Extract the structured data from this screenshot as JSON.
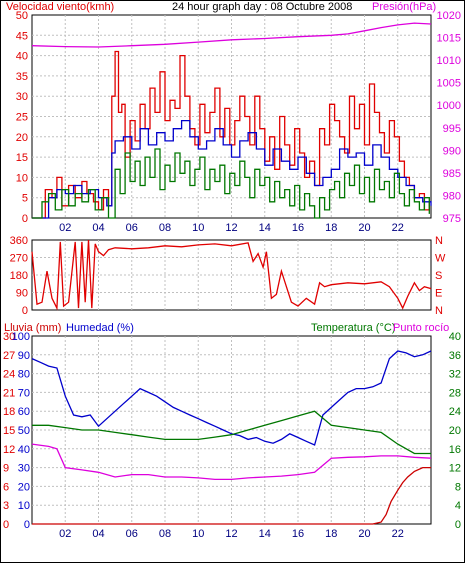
{
  "header": {
    "left_label": "Velocidad viento(kmh)",
    "title": "24 hour graph day : 08 Octubre 2008",
    "right_label": "Presión(hPa)"
  },
  "colors": {
    "red": "#e00000",
    "blue": "#0000cc",
    "green": "#007700",
    "magenta": "#dd00dd",
    "grid": "#c0c0c0"
  },
  "x_ticks": [
    "02",
    "04",
    "06",
    "08",
    "10",
    "12",
    "14",
    "16",
    "18",
    "20",
    "22"
  ],
  "panel3_labels": {
    "rain": "Lluvia (mm)",
    "humidity": "Humedad (%)",
    "temperature": "Temperatura (°C)",
    "dewpoint": "Punto rocío"
  },
  "chart_data": [
    {
      "type": "line",
      "title": "24 hour graph day : 08 Octubre 2008",
      "x_unit": "hour",
      "xlim": [
        0,
        24
      ],
      "y_left": {
        "label": "Velocidad viento(kmh)",
        "lim": [
          0,
          50
        ],
        "ticks": [
          "0",
          "5",
          "10",
          "15",
          "20",
          "25",
          "30",
          "35",
          "40",
          "45",
          "50"
        ]
      },
      "y_right": {
        "label": "Presión(hPa)",
        "lim": [
          975,
          1020
        ],
        "ticks": [
          "975",
          "980",
          "985",
          "990",
          "995",
          "1000",
          "1005",
          "1010",
          "1015",
          "1020"
        ]
      },
      "series": [
        {
          "name": "Velocidad viento(kmh)",
          "axis": "left",
          "color": "#e00000",
          "x": [
            0,
            0.5,
            0.8,
            1.2,
            1.5,
            1.8,
            2.2,
            2.6,
            3,
            3.3,
            3.7,
            4,
            4.3,
            4.6,
            4.8,
            5,
            5.2,
            5.4,
            5.6,
            5.9,
            6.2,
            6.5,
            6.8,
            7.1,
            7.4,
            7.7,
            8,
            8.3,
            8.6,
            8.9,
            9.2,
            9.5,
            9.8,
            10.1,
            10.4,
            10.7,
            11,
            11.3,
            11.6,
            11.9,
            12.2,
            12.5,
            12.8,
            13.1,
            13.4,
            13.7,
            14,
            14.3,
            14.6,
            14.9,
            15.2,
            15.5,
            15.8,
            16.1,
            16.4,
            16.7,
            17,
            17.3,
            17.6,
            17.9,
            18.2,
            18.5,
            18.8,
            19.1,
            19.4,
            19.7,
            20,
            20.3,
            20.6,
            20.9,
            21.2,
            21.5,
            21.8,
            22.1,
            22.4,
            22.7,
            23,
            23.3,
            23.6,
            23.9
          ],
          "values": [
            0,
            0,
            7,
            5,
            10,
            3,
            8,
            5,
            9,
            6,
            4,
            2,
            7,
            3,
            30,
            41,
            26,
            28,
            15,
            24,
            19,
            28,
            22,
            32,
            26,
            36,
            24,
            29,
            27,
            40,
            30,
            22,
            18,
            28,
            21,
            26,
            32,
            20,
            27,
            18,
            24,
            30,
            25,
            18,
            30,
            22,
            14,
            20,
            12,
            25,
            18,
            13,
            22,
            16,
            10,
            14,
            8,
            22,
            18,
            28,
            24,
            20,
            16,
            30,
            22,
            28,
            18,
            33,
            26,
            21,
            16,
            24,
            20,
            14,
            10,
            8,
            5,
            6,
            2,
            4
          ]
        },
        {
          "name": "Promedio viento",
          "axis": "left",
          "color": "#0000cc",
          "x": [
            0,
            1,
            1.5,
            2,
            2.5,
            3,
            3.5,
            4,
            4.5,
            4.8,
            5,
            5.5,
            6,
            6.5,
            7,
            7.5,
            8,
            8.5,
            9,
            9.5,
            10,
            10.5,
            11,
            11.5,
            12,
            12.5,
            13,
            13.5,
            14,
            14.5,
            15,
            15.5,
            16,
            16.5,
            17,
            17.5,
            18,
            18.5,
            19,
            19.5,
            20,
            20.5,
            21,
            21.5,
            22,
            22.5,
            23,
            23.5,
            24
          ],
          "values": [
            0,
            5,
            7,
            6,
            8,
            6,
            7,
            5,
            3,
            16,
            19,
            20,
            17,
            22,
            18,
            21,
            19,
            22,
            24,
            20,
            17,
            19,
            22,
            18,
            15,
            19,
            21,
            17,
            13,
            17,
            14,
            12,
            15,
            11,
            8,
            10,
            12,
            17,
            15,
            16,
            13,
            18,
            15,
            12,
            10,
            8,
            5,
            4,
            3
          ]
        },
        {
          "name": "Viento medio",
          "axis": "left",
          "color": "#007700",
          "x": [
            0,
            0.6,
            1,
            1.4,
            1.8,
            2.2,
            2.6,
            3,
            3.4,
            3.8,
            4.2,
            4.6,
            5,
            5.3,
            5.6,
            5.9,
            6.2,
            6.5,
            6.8,
            7.1,
            7.4,
            7.7,
            8,
            8.3,
            8.6,
            8.9,
            9.2,
            9.5,
            9.8,
            10.1,
            10.4,
            10.7,
            11,
            11.3,
            11.6,
            11.9,
            12.2,
            12.5,
            12.8,
            13.1,
            13.4,
            13.7,
            14,
            14.3,
            14.6,
            14.9,
            15.2,
            15.5,
            15.8,
            16.1,
            16.4,
            16.7,
            17,
            17.3,
            17.6,
            17.9,
            18.2,
            18.5,
            18.8,
            19.1,
            19.4,
            19.7,
            20,
            20.3,
            20.6,
            20.9,
            21.2,
            21.5,
            21.8,
            22.1,
            22.4,
            22.7,
            23,
            23.3,
            23.6,
            23.9
          ],
          "values": [
            0,
            4,
            6,
            2,
            7,
            3,
            6,
            4,
            7,
            2,
            5,
            0,
            12,
            6,
            16,
            9,
            14,
            8,
            15,
            10,
            17,
            7,
            13,
            9,
            16,
            11,
            14,
            8,
            12,
            15,
            7,
            12,
            9,
            13,
            6,
            11,
            8,
            14,
            10,
            5,
            12,
            8,
            10,
            4,
            9,
            5,
            7,
            3,
            8,
            2,
            6,
            3,
            0,
            5,
            2,
            7,
            9,
            5,
            11,
            8,
            13,
            6,
            10,
            4,
            12,
            7,
            9,
            5,
            11,
            6,
            3,
            7,
            4,
            2,
            5,
            1
          ]
        },
        {
          "name": "Presión(hPa)",
          "axis": "right",
          "color": "#dd00dd",
          "x": [
            0,
            2,
            4,
            6,
            8,
            10,
            12,
            14,
            16,
            18,
            19,
            20,
            21,
            22,
            23,
            24
          ],
          "values": [
            1013.2,
            1013.0,
            1012.9,
            1013.2,
            1013.5,
            1014.0,
            1014.5,
            1014.8,
            1015.2,
            1015.5,
            1015.8,
            1016.5,
            1017.2,
            1017.8,
            1018.2,
            1018.0
          ]
        }
      ]
    },
    {
      "type": "line",
      "title": "",
      "x_unit": "hour",
      "xlim": [
        0,
        24
      ],
      "y_left": {
        "label": "",
        "lim": [
          0,
          360
        ],
        "ticks": [
          "0",
          "90",
          "180",
          "270",
          "360"
        ]
      },
      "y_right": {
        "label": "",
        "ticks": [
          "N",
          "E",
          "S",
          "W",
          "N"
        ]
      },
      "series": [
        {
          "name": "Dirección viento",
          "axis": "left",
          "color": "#e00000",
          "x": [
            0,
            0.3,
            0.6,
            0.9,
            1.2,
            1.5,
            1.7,
            1.9,
            2.2,
            2.6,
            2.8,
            3,
            3.2,
            3.4,
            3.6,
            3.8,
            4,
            4.3,
            4.6,
            5,
            6,
            7,
            8,
            9,
            10,
            11,
            12,
            13,
            13.3,
            13.6,
            13.9,
            14.1,
            14.4,
            14.7,
            15,
            15.3,
            15.6,
            16,
            16.5,
            17,
            17.3,
            17.6,
            18,
            19,
            20,
            21,
            21.5,
            22,
            22.3,
            22.6,
            23,
            23.3,
            23.6,
            24
          ],
          "values": [
            300,
            30,
            40,
            200,
            60,
            10,
            350,
            20,
            40,
            350,
            10,
            350,
            40,
            360,
            10,
            340,
            300,
            280,
            310,
            320,
            315,
            320,
            330,
            325,
            335,
            340,
            330,
            345,
            250,
            290,
            220,
            300,
            60,
            80,
            200,
            120,
            40,
            20,
            60,
            30,
            140,
            120,
            130,
            140,
            135,
            145,
            120,
            60,
            10,
            70,
            140,
            100,
            120,
            110
          ]
        }
      ]
    },
    {
      "type": "line",
      "title": "",
      "x_unit": "hour",
      "xlim": [
        0,
        24
      ],
      "y_left": {
        "label": "Lluvia (mm)",
        "lim": [
          0,
          100
        ],
        "ticks": [
          "0",
          "3",
          "6",
          "9",
          "12",
          "15",
          "18",
          "21",
          "24",
          "27",
          "30"
        ],
        "alt_label": "Humedad (%)",
        "alt_ticks": [
          "0",
          "10",
          "20",
          "30",
          "40",
          "50",
          "60",
          "70",
          "80",
          "90",
          "100"
        ]
      },
      "y_right": {
        "label": "Temperatura (°C)",
        "lim": [
          0,
          40
        ],
        "ticks": [
          "0",
          "4",
          "8",
          "12",
          "16",
          "20",
          "24",
          "28",
          "32",
          "36",
          "40"
        ]
      },
      "series": [
        {
          "name": "Humedad (%)",
          "axis": "left",
          "color": "#0000cc",
          "x": [
            0,
            0.5,
            1,
            1.5,
            2,
            2.5,
            3,
            3.5,
            4,
            4.5,
            5,
            5.5,
            6,
            6.5,
            7,
            7.5,
            8,
            8.5,
            9,
            9.5,
            10,
            10.5,
            11,
            11.5,
            12,
            12.5,
            13,
            13.5,
            14,
            14.5,
            15,
            15.5,
            16,
            16.5,
            17,
            17.5,
            18,
            18.5,
            19,
            19.5,
            20,
            20.5,
            21,
            21.5,
            22,
            22.5,
            23,
            23.5,
            24
          ],
          "values": [
            88,
            86,
            84,
            83,
            68,
            58,
            57,
            58,
            52,
            56,
            60,
            64,
            68,
            72,
            70,
            68,
            65,
            62,
            60,
            58,
            56,
            54,
            52,
            50,
            48,
            47,
            45,
            46,
            44,
            43,
            45,
            48,
            46,
            44,
            42,
            58,
            62,
            66,
            70,
            72,
            72,
            73,
            75,
            88,
            92,
            91,
            89,
            90,
            92
          ]
        },
        {
          "name": "Temperatura (°C)",
          "axis": "right",
          "color": "#007700",
          "x": [
            0,
            1,
            2,
            3,
            4,
            5,
            6,
            7,
            8,
            9,
            10,
            11,
            12,
            13,
            14,
            15,
            16,
            17,
            18,
            19,
            20,
            21,
            22,
            23,
            24
          ],
          "values": [
            21,
            21,
            20.5,
            20,
            20,
            19.5,
            19,
            18.5,
            18,
            18,
            18,
            18.5,
            19,
            20,
            21,
            22,
            23,
            24,
            21,
            20.5,
            20,
            19.5,
            17,
            15,
            15
          ]
        },
        {
          "name": "Punto rocío",
          "axis": "right",
          "color": "#dd00dd",
          "x": [
            0,
            1,
            1.5,
            2,
            3,
            4,
            5,
            6,
            7,
            8,
            9,
            10,
            11,
            12,
            13,
            14,
            15,
            16,
            17,
            18,
            19,
            20,
            21,
            22,
            23,
            24
          ],
          "values": [
            17,
            16.5,
            16,
            12,
            11.5,
            11,
            10,
            10.5,
            10.5,
            10,
            10,
            9.8,
            9.5,
            9.5,
            9.8,
            10,
            10.2,
            10.5,
            11,
            14,
            14.2,
            14.3,
            14.5,
            14.5,
            14.2,
            14
          ]
        },
        {
          "name": "Lluvia (mm)",
          "axis": "left",
          "color": "#cc0000",
          "x": [
            0,
            20.5,
            21,
            21.3,
            21.6,
            22,
            22.3,
            22.6,
            23,
            23.5,
            24
          ],
          "values": [
            0,
            0,
            1,
            5,
            12,
            18,
            22,
            25,
            28,
            30,
            30
          ]
        }
      ]
    }
  ]
}
